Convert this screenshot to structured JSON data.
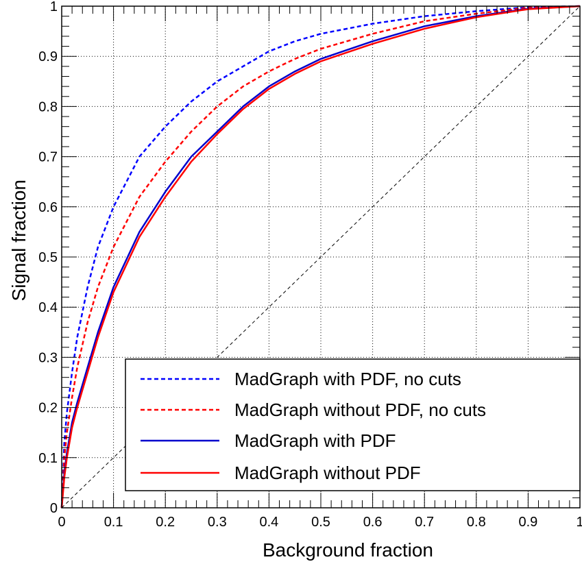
{
  "chart_data": {
    "type": "line",
    "title": "",
    "xlabel": "Background fraction",
    "ylabel": "Signal fraction",
    "xlim": [
      0,
      1
    ],
    "ylim": [
      0,
      1
    ],
    "grid": true,
    "legend_position": "bottom-right",
    "x_ticks": [
      "0",
      "0.1",
      "0.2",
      "0.3",
      "0.4",
      "0.5",
      "0.6",
      "0.7",
      "0.8",
      "0.9",
      "1"
    ],
    "y_ticks": [
      "0",
      "0.1",
      "0.2",
      "0.3",
      "0.4",
      "0.5",
      "0.6",
      "0.7",
      "0.8",
      "0.9",
      "1"
    ],
    "series": [
      {
        "name": "MadGraph with PDF, no cuts",
        "color": "#0000ff",
        "style": "dashed",
        "points": [
          [
            0,
            0
          ],
          [
            0.005,
            0.13
          ],
          [
            0.01,
            0.19
          ],
          [
            0.02,
            0.27
          ],
          [
            0.03,
            0.34
          ],
          [
            0.05,
            0.44
          ],
          [
            0.07,
            0.52
          ],
          [
            0.1,
            0.6
          ],
          [
            0.15,
            0.7
          ],
          [
            0.2,
            0.76
          ],
          [
            0.25,
            0.81
          ],
          [
            0.3,
            0.85
          ],
          [
            0.35,
            0.88
          ],
          [
            0.4,
            0.91
          ],
          [
            0.45,
            0.93
          ],
          [
            0.5,
            0.945
          ],
          [
            0.6,
            0.965
          ],
          [
            0.7,
            0.98
          ],
          [
            0.8,
            0.99
          ],
          [
            0.9,
            0.998
          ],
          [
            1,
            1
          ]
        ]
      },
      {
        "name": "MadGraph without PDF, no cuts",
        "color": "#ff0000",
        "style": "dashed",
        "points": [
          [
            0,
            0
          ],
          [
            0.005,
            0.1
          ],
          [
            0.01,
            0.15
          ],
          [
            0.02,
            0.22
          ],
          [
            0.03,
            0.28
          ],
          [
            0.05,
            0.37
          ],
          [
            0.07,
            0.44
          ],
          [
            0.1,
            0.52
          ],
          [
            0.15,
            0.62
          ],
          [
            0.2,
            0.69
          ],
          [
            0.25,
            0.75
          ],
          [
            0.3,
            0.8
          ],
          [
            0.35,
            0.84
          ],
          [
            0.4,
            0.87
          ],
          [
            0.45,
            0.895
          ],
          [
            0.5,
            0.915
          ],
          [
            0.6,
            0.945
          ],
          [
            0.7,
            0.97
          ],
          [
            0.8,
            0.985
          ],
          [
            0.9,
            0.997
          ],
          [
            1,
            1
          ]
        ]
      },
      {
        "name": "MadGraph with PDF",
        "color": "#0000cc",
        "style": "solid",
        "points": [
          [
            0,
            0
          ],
          [
            0.005,
            0.07
          ],
          [
            0.01,
            0.11
          ],
          [
            0.02,
            0.17
          ],
          [
            0.03,
            0.21
          ],
          [
            0.05,
            0.28
          ],
          [
            0.07,
            0.35
          ],
          [
            0.1,
            0.44
          ],
          [
            0.15,
            0.55
          ],
          [
            0.2,
            0.63
          ],
          [
            0.25,
            0.7
          ],
          [
            0.3,
            0.75
          ],
          [
            0.35,
            0.8
          ],
          [
            0.4,
            0.84
          ],
          [
            0.45,
            0.87
          ],
          [
            0.5,
            0.895
          ],
          [
            0.6,
            0.93
          ],
          [
            0.7,
            0.96
          ],
          [
            0.8,
            0.98
          ],
          [
            0.9,
            0.995
          ],
          [
            1,
            1
          ]
        ]
      },
      {
        "name": "MadGraph without PDF",
        "color": "#ff0000",
        "style": "solid",
        "points": [
          [
            0,
            0
          ],
          [
            0.005,
            0.06
          ],
          [
            0.01,
            0.1
          ],
          [
            0.02,
            0.16
          ],
          [
            0.03,
            0.2
          ],
          [
            0.05,
            0.27
          ],
          [
            0.07,
            0.34
          ],
          [
            0.1,
            0.43
          ],
          [
            0.15,
            0.54
          ],
          [
            0.2,
            0.62
          ],
          [
            0.25,
            0.69
          ],
          [
            0.3,
            0.745
          ],
          [
            0.35,
            0.795
          ],
          [
            0.4,
            0.835
          ],
          [
            0.45,
            0.865
          ],
          [
            0.5,
            0.89
          ],
          [
            0.6,
            0.925
          ],
          [
            0.7,
            0.955
          ],
          [
            0.8,
            0.978
          ],
          [
            0.9,
            0.994
          ],
          [
            1,
            1
          ]
        ]
      },
      {
        "name": "",
        "color": "#000000",
        "style": "diagonal",
        "points": [
          [
            0,
            0
          ],
          [
            1,
            1
          ]
        ]
      }
    ]
  }
}
